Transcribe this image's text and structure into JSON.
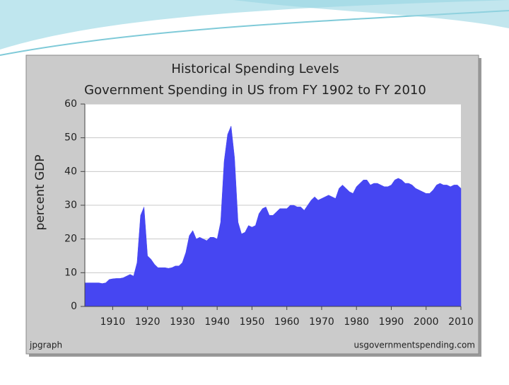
{
  "chart_data": {
    "type": "area",
    "title": "Historical Spending Levels",
    "subtitle": "Government Spending in US from FY 1902 to FY 2010",
    "y_label": "percent GDP",
    "footer_left": "jpgraph",
    "footer_right": "usgovernmentspending.com",
    "x": [
      1902,
      1903,
      1904,
      1905,
      1906,
      1907,
      1908,
      1909,
      1910,
      1911,
      1912,
      1913,
      1914,
      1915,
      1916,
      1917,
      1918,
      1919,
      1920,
      1921,
      1922,
      1923,
      1924,
      1925,
      1926,
      1927,
      1928,
      1929,
      1930,
      1931,
      1932,
      1933,
      1934,
      1935,
      1936,
      1937,
      1938,
      1939,
      1940,
      1941,
      1942,
      1943,
      1944,
      1945,
      1946,
      1947,
      1948,
      1949,
      1950,
      1951,
      1952,
      1953,
      1954,
      1955,
      1956,
      1957,
      1958,
      1959,
      1960,
      1961,
      1962,
      1963,
      1964,
      1965,
      1966,
      1967,
      1968,
      1969,
      1970,
      1971,
      1972,
      1973,
      1974,
      1975,
      1976,
      1977,
      1978,
      1979,
      1980,
      1981,
      1982,
      1983,
      1984,
      1985,
      1986,
      1987,
      1988,
      1989,
      1990,
      1991,
      1992,
      1993,
      1994,
      1995,
      1996,
      1997,
      1998,
      1999,
      2000,
      2001,
      2002,
      2003,
      2004,
      2005,
      2006,
      2007,
      2008,
      2009,
      2010
    ],
    "values": [
      7,
      7,
      7,
      7,
      7,
      6.8,
      7,
      8,
      8.2,
      8.3,
      8.3,
      8.5,
      9,
      9.5,
      9,
      13,
      27,
      29.5,
      15,
      14,
      12.5,
      11.5,
      11.5,
      11.5,
      11.3,
      11.5,
      12,
      12,
      13,
      16,
      21,
      22.5,
      20,
      20.5,
      20,
      19.5,
      20.5,
      20.5,
      20,
      25,
      43,
      51,
      53.5,
      44,
      25,
      21.5,
      22,
      24,
      23.5,
      24,
      27.5,
      29,
      29.5,
      27,
      27,
      28,
      29,
      29,
      29,
      30,
      30,
      29.5,
      29.5,
      28.5,
      30,
      31.5,
      32.5,
      31.5,
      32,
      32.5,
      33,
      32.5,
      32,
      35,
      36,
      35,
      34,
      33.5,
      35.5,
      36.5,
      37.5,
      37.5,
      36,
      36.5,
      36.5,
      36,
      35.5,
      35.5,
      36,
      37.5,
      38,
      37.5,
      36.5,
      36.5,
      36,
      35,
      34.5,
      34,
      33.5,
      33.5,
      34.5,
      36,
      36.5,
      36,
      36,
      35.5,
      36,
      36,
      35
    ],
    "color": "#4646f2",
    "xlim": [
      1902,
      2010
    ],
    "xticks": [
      1910,
      1920,
      1930,
      1940,
      1950,
      1960,
      1970,
      1980,
      1990,
      2000,
      2010
    ],
    "ylim": [
      0,
      60
    ],
    "yticks": [
      0,
      10,
      20,
      30,
      40,
      50,
      60
    ],
    "grid": true
  }
}
